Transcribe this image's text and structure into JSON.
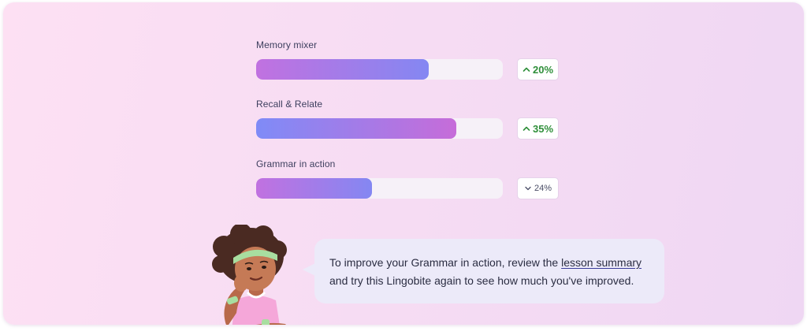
{
  "metrics": [
    {
      "label": "Memory mixer",
      "progress": 0.7,
      "change": "20%",
      "direction": "up",
      "gradient_start": "#c171e0",
      "gradient_end": "#8487f2"
    },
    {
      "label": "Recall & Relate",
      "progress": 0.81,
      "change": "35%",
      "direction": "up",
      "gradient_start": "#7f8bf7",
      "gradient_end": "#c66cd9"
    },
    {
      "label": "Grammar in action",
      "progress": 0.47,
      "change": "24%",
      "direction": "down",
      "gradient_start": "#c171e0",
      "gradient_end": "#8487f2"
    }
  ],
  "feedback": {
    "text_before": "To improve your Grammar in action, review the ",
    "link_text": "lesson summary",
    "text_after": " and try this Lingobite again to see how much you've improved."
  },
  "icons": {
    "up": "chevron-up-icon",
    "down": "chevron-down-icon"
  },
  "colors": {
    "increase": "#2f8f3a",
    "decrease": "#4a4d66",
    "track": "#f6f1f8",
    "bubble": "#eceaf9"
  }
}
